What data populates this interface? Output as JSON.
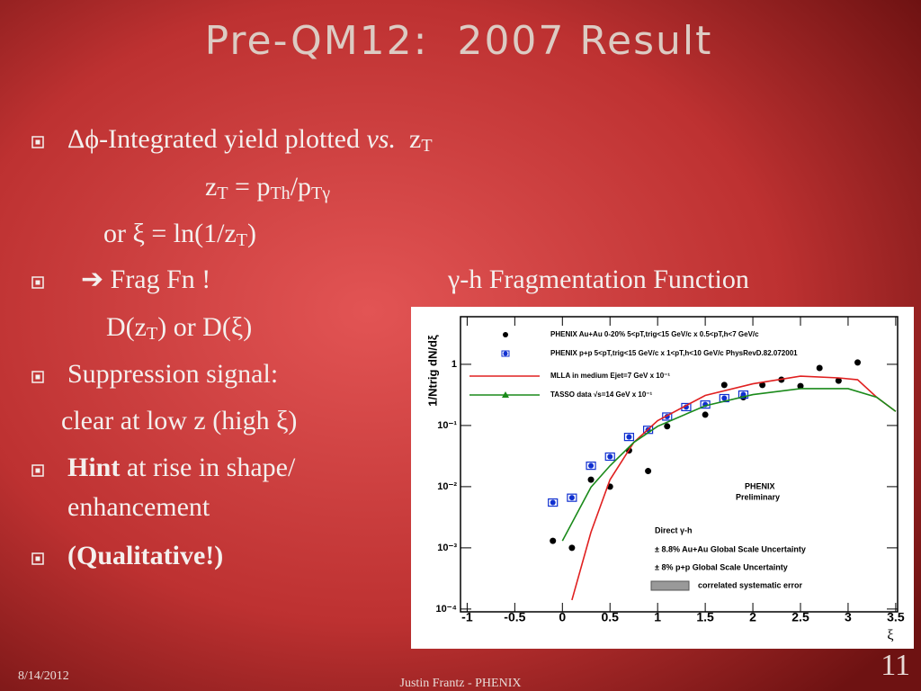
{
  "title": "Pre-QM12:  2007 Result",
  "lines": [
    [
      "Δϕ-Integrated yield plotted ",
      "vs.",
      "  z",
      "T"
    ],
    [
      "z",
      "T",
      " = p",
      "Th",
      "/p",
      "Tγ"
    ],
    [
      "or ξ = ln(1/z",
      "T",
      ")"
    ],
    [
      "➔ Frag Fn !"
    ],
    [
      "D(z",
      "T",
      ") or D(ξ)"
    ],
    [
      "Suppression signal:"
    ],
    [
      "clear at low z (high ξ)"
    ],
    [
      "Hint",
      " at rise in shape/"
    ],
    [
      "enhancement"
    ],
    [
      "(Qualitative!)"
    ]
  ],
  "plot_heading": "γ-h Fragmentation Function",
  "footer": {
    "date": "8/14/2012",
    "author": "Justin Frantz - PHENIX",
    "page": "11"
  },
  "chart_data": {
    "type": "scatter",
    "y_label": "1/Ntrig dN/dξ",
    "x_label": "ξ",
    "log_y": true,
    "xlim": [
      -1.07,
      3.52
    ],
    "ylim": [
      9e-05,
      6
    ],
    "xticks": [
      -1,
      -0.5,
      0,
      0.5,
      1,
      1.5,
      2,
      2.5,
      3,
      3.5
    ],
    "yticks": [
      {
        "value": 0.0001,
        "label": "10⁻⁴"
      },
      {
        "value": 0.001,
        "label": "10⁻³"
      },
      {
        "value": 0.01,
        "label": "10⁻²"
      },
      {
        "value": 0.1,
        "label": "10⁻¹"
      },
      1
    ],
    "series": [
      {
        "name": "PHENIX Au+Au 0-20% 5<pT,trig<15 GeV/c x 0.5<pT,h<7 GeV/c",
        "color": "#000000",
        "style": "dot",
        "x": [
          -0.1,
          0.1,
          0.3,
          0.5,
          0.7,
          0.9,
          1.1,
          1.5,
          1.7,
          1.9,
          2.1,
          2.3,
          2.5,
          2.7,
          2.9,
          3.1
        ],
        "values": [
          0.0013,
          0.001,
          0.013,
          0.01,
          0.039,
          0.018,
          0.097,
          0.15,
          0.46,
          0.29,
          0.46,
          0.56,
          0.44,
          0.87,
          0.54,
          1.07
        ]
      },
      {
        "name": "PHENIX p+p 5<pT,trig<15 GeV/c x 1<pT,h<10 GeV/c PhysRevD.82.072001",
        "color": "#1030d0",
        "style": "dot-box",
        "x": [
          -0.1,
          0.1,
          0.3,
          0.5,
          0.7,
          0.9,
          1.1,
          1.3,
          1.5,
          1.7,
          1.9
        ],
        "values": [
          0.0055,
          0.0066,
          0.022,
          0.031,
          0.065,
          0.085,
          0.14,
          0.2,
          0.22,
          0.28,
          0.32
        ]
      },
      {
        "name": "MLLA in medium Ejet=7 GeV x 10⁻¹",
        "color": "#e02020",
        "style": "line",
        "x": [
          0.1,
          0.3,
          0.5,
          0.75,
          1,
          1.5,
          2,
          2.5,
          2.9,
          3.1,
          3.3,
          3.5
        ],
        "values": [
          0.00014,
          0.0018,
          0.013,
          0.053,
          0.12,
          0.31,
          0.48,
          0.64,
          0.6,
          0.56,
          0.29,
          0.17
        ]
      },
      {
        "name": "TASSO data √s=14 GeV x 10⁻¹",
        "color": "#1a8a1a",
        "style": "line-tri",
        "x": [
          0,
          0.3,
          0.5,
          0.75,
          1,
          1.5,
          2,
          2.5,
          3,
          3.3,
          3.5
        ],
        "values": [
          0.0013,
          0.0098,
          0.022,
          0.053,
          0.097,
          0.21,
          0.32,
          0.4,
          0.4,
          0.29,
          0.17
        ]
      }
    ],
    "annotations": [
      "Direct γ-h",
      "± 8.8% Au+Au Global Scale Uncertainty",
      "± 8% p+p Global Scale Uncertainty",
      "correlated systematic error",
      "PHENIX",
      "Preliminary"
    ]
  }
}
